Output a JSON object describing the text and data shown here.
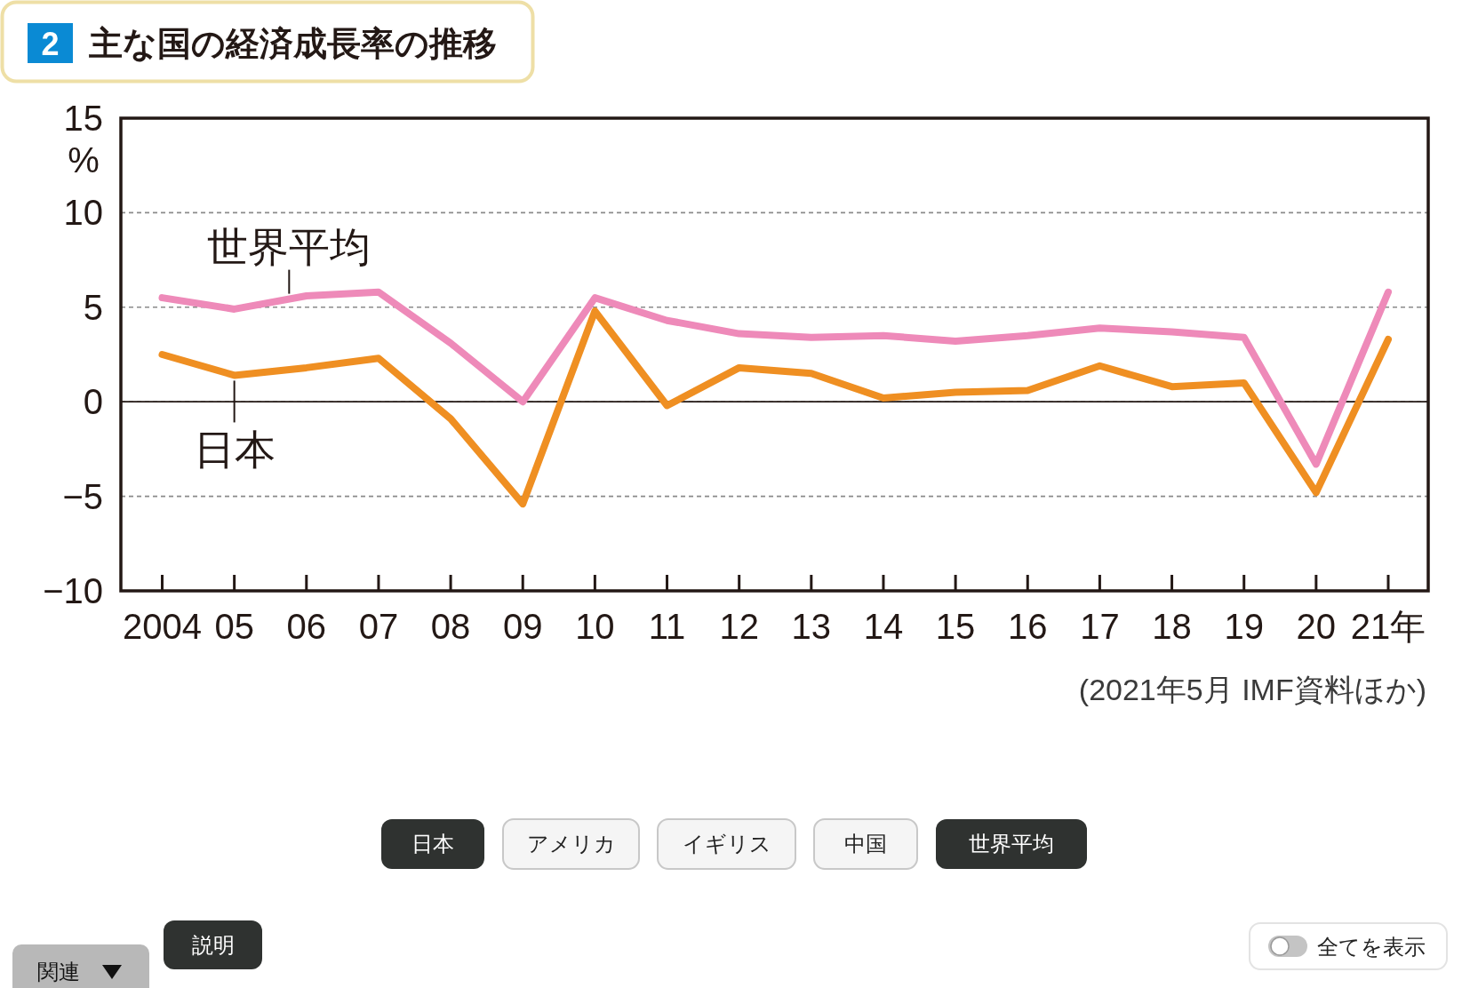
{
  "chart_data": {
    "type": "line",
    "title": "主な国の経済成長率の推移",
    "ylabel": "%",
    "categories": [
      "2004",
      "05",
      "06",
      "07",
      "08",
      "09",
      "10",
      "11",
      "12",
      "13",
      "14",
      "15",
      "16",
      "17",
      "18",
      "19",
      "20",
      "21年"
    ],
    "series": [
      {
        "name": "日本",
        "color": "#ef8f22",
        "values": [
          2.5,
          1.4,
          1.8,
          2.3,
          -0.9,
          -5.4,
          4.8,
          -0.2,
          1.8,
          1.5,
          0.2,
          0.5,
          0.6,
          1.9,
          0.8,
          1.0,
          -4.8,
          3.3
        ]
      },
      {
        "name": "世界平均",
        "color": "#ee8ab9",
        "values": [
          5.5,
          4.9,
          5.6,
          5.8,
          3.1,
          0.0,
          5.5,
          4.3,
          3.6,
          3.4,
          3.5,
          3.2,
          3.5,
          3.9,
          3.7,
          3.4,
          -3.3,
          5.8
        ]
      }
    ],
    "ylim": [
      -10,
      15
    ],
    "yticks": [
      {
        "value": -10,
        "label": "−10"
      },
      {
        "value": -5,
        "label": "−5"
      },
      0,
      5,
      10,
      15
    ],
    "grid": "y",
    "ref_lines": [
      {
        "axis": "y",
        "value": 0
      }
    ],
    "line_style": "solid",
    "annotations": [
      "2",
      "(2021年5月 IMF資料ほか)",
      "日本",
      "アメリカ",
      "イギリス",
      "中国",
      "世界平均",
      "説明",
      "関連",
      "全てを表示"
    ]
  }
}
